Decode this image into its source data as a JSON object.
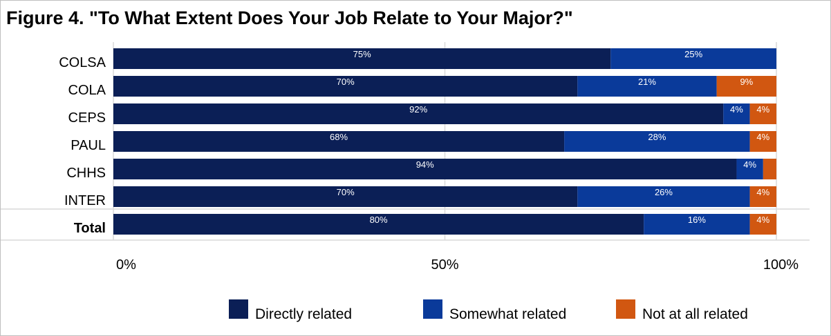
{
  "chart_data": {
    "type": "bar",
    "orientation": "horizontal",
    "stacked": true,
    "title": "Figure 4. \"To What Extent Does Your Job Relate to Your Major?\"",
    "categories": [
      "COLSA",
      "COLA",
      "CEPS",
      "PAUL",
      "CHHS",
      "INTER",
      "Total"
    ],
    "bold_categories": [
      "Total"
    ],
    "series": [
      {
        "name": "Directly related",
        "color": "#0b1f56",
        "values": [
          75,
          70,
          92,
          68,
          94,
          70,
          80
        ],
        "labels": [
          "75%",
          "70%",
          "92%",
          "68%",
          "94%",
          "70%",
          "80%"
        ]
      },
      {
        "name": "Somewhat related",
        "color": "#0a3a9a",
        "values": [
          25,
          21,
          4,
          28,
          4,
          26,
          16
        ],
        "labels": [
          "25%",
          "21%",
          "4%",
          "28%",
          "4%",
          "26%",
          "16%"
        ]
      },
      {
        "name": "Not at all related",
        "color": "#d15711",
        "values": [
          0,
          9,
          4,
          4,
          2,
          4,
          4
        ],
        "labels": [
          "",
          "9%",
          "4%",
          "4%",
          "",
          "4%",
          "4%"
        ]
      }
    ],
    "xlim": [
      0,
      100
    ],
    "x_ticks": [
      0,
      50,
      100
    ],
    "x_tick_labels": [
      "0%",
      "50%",
      "100%"
    ],
    "grid": true,
    "legend_position": "bottom"
  }
}
